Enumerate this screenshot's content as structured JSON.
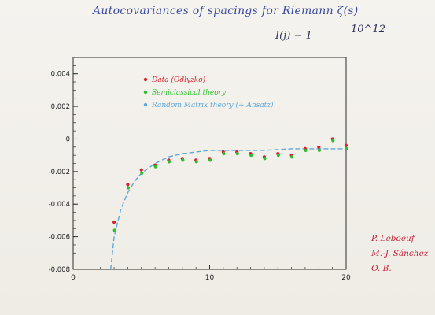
{
  "header": {
    "title": "Autocovariances of spacings for Riemann ζ(s)",
    "subtitle": "I(j) − 1",
    "exponent": "10^12"
  },
  "authors": [
    "P. Leboeuf",
    "M.-J. Sánchez",
    "O. B."
  ],
  "chart_data": {
    "type": "scatter",
    "title": "Autocovariances of spacings for Riemann ζ(s)",
    "xlabel": "",
    "ylabel": "",
    "xlim": [
      0,
      20
    ],
    "ylim": [
      -0.008,
      0.005
    ],
    "x_ticks": [
      0,
      10,
      20
    ],
    "y_ticks": [
      {
        "value": 0.004,
        "label": "0.004"
      },
      {
        "value": 0.002,
        "label": "0.002"
      },
      {
        "value": 0,
        "label": "0"
      },
      {
        "value": -0.002,
        "label": "-0.002"
      },
      {
        "value": -0.004,
        "label": "-0.004"
      },
      {
        "value": -0.006,
        "label": "-0.006"
      },
      {
        "value": -0.008,
        "label": "-0.008"
      }
    ],
    "legend_position": "top-left inside",
    "series": [
      {
        "name": "Data (Odlyzko)",
        "color": "#d9202e",
        "marker": "dot",
        "x": [
          3,
          4,
          5,
          6,
          7,
          8,
          9,
          10,
          11,
          12,
          13,
          14,
          15,
          16,
          17,
          18,
          19,
          20
        ],
        "y": [
          -0.0051,
          -0.0028,
          -0.0019,
          -0.0016,
          -0.0013,
          -0.0012,
          -0.0013,
          -0.0012,
          -0.0008,
          -0.0008,
          -0.0009,
          -0.0011,
          -0.0009,
          -0.001,
          -0.0006,
          -0.0005,
          0.0,
          -0.0004
        ]
      },
      {
        "name": "Semiclassical theory",
        "color": "#2cbf2c",
        "marker": "dot",
        "x": [
          3,
          4,
          5,
          6,
          7,
          8,
          9,
          10,
          11,
          12,
          13,
          14,
          15,
          16,
          17,
          18,
          19,
          20
        ],
        "y": [
          -0.0056,
          -0.003,
          -0.0021,
          -0.0017,
          -0.0014,
          -0.0013,
          -0.0014,
          -0.0013,
          -0.0009,
          -0.0009,
          -0.001,
          -0.0012,
          -0.001,
          -0.0011,
          -0.0007,
          -0.0007,
          -0.0001,
          -0.0006
        ]
      },
      {
        "name": "Random Matrix theory (+ Ansatz)",
        "color": "#5fa8d8",
        "marker": "dashed line",
        "x": [
          2.75,
          3.0,
          3.5,
          4.0,
          4.5,
          5.0,
          6.0,
          7.0,
          8.0,
          9.0,
          10.0,
          12.0,
          14.0,
          16.0,
          18.0,
          20.0
        ],
        "y": [
          -0.008,
          -0.006,
          -0.0043,
          -0.0033,
          -0.0026,
          -0.0021,
          -0.0015,
          -0.0011,
          -0.0009,
          -0.0008,
          -0.0007,
          -0.0007,
          -0.0007,
          -0.0006,
          -0.0006,
          -0.0006
        ]
      }
    ]
  }
}
